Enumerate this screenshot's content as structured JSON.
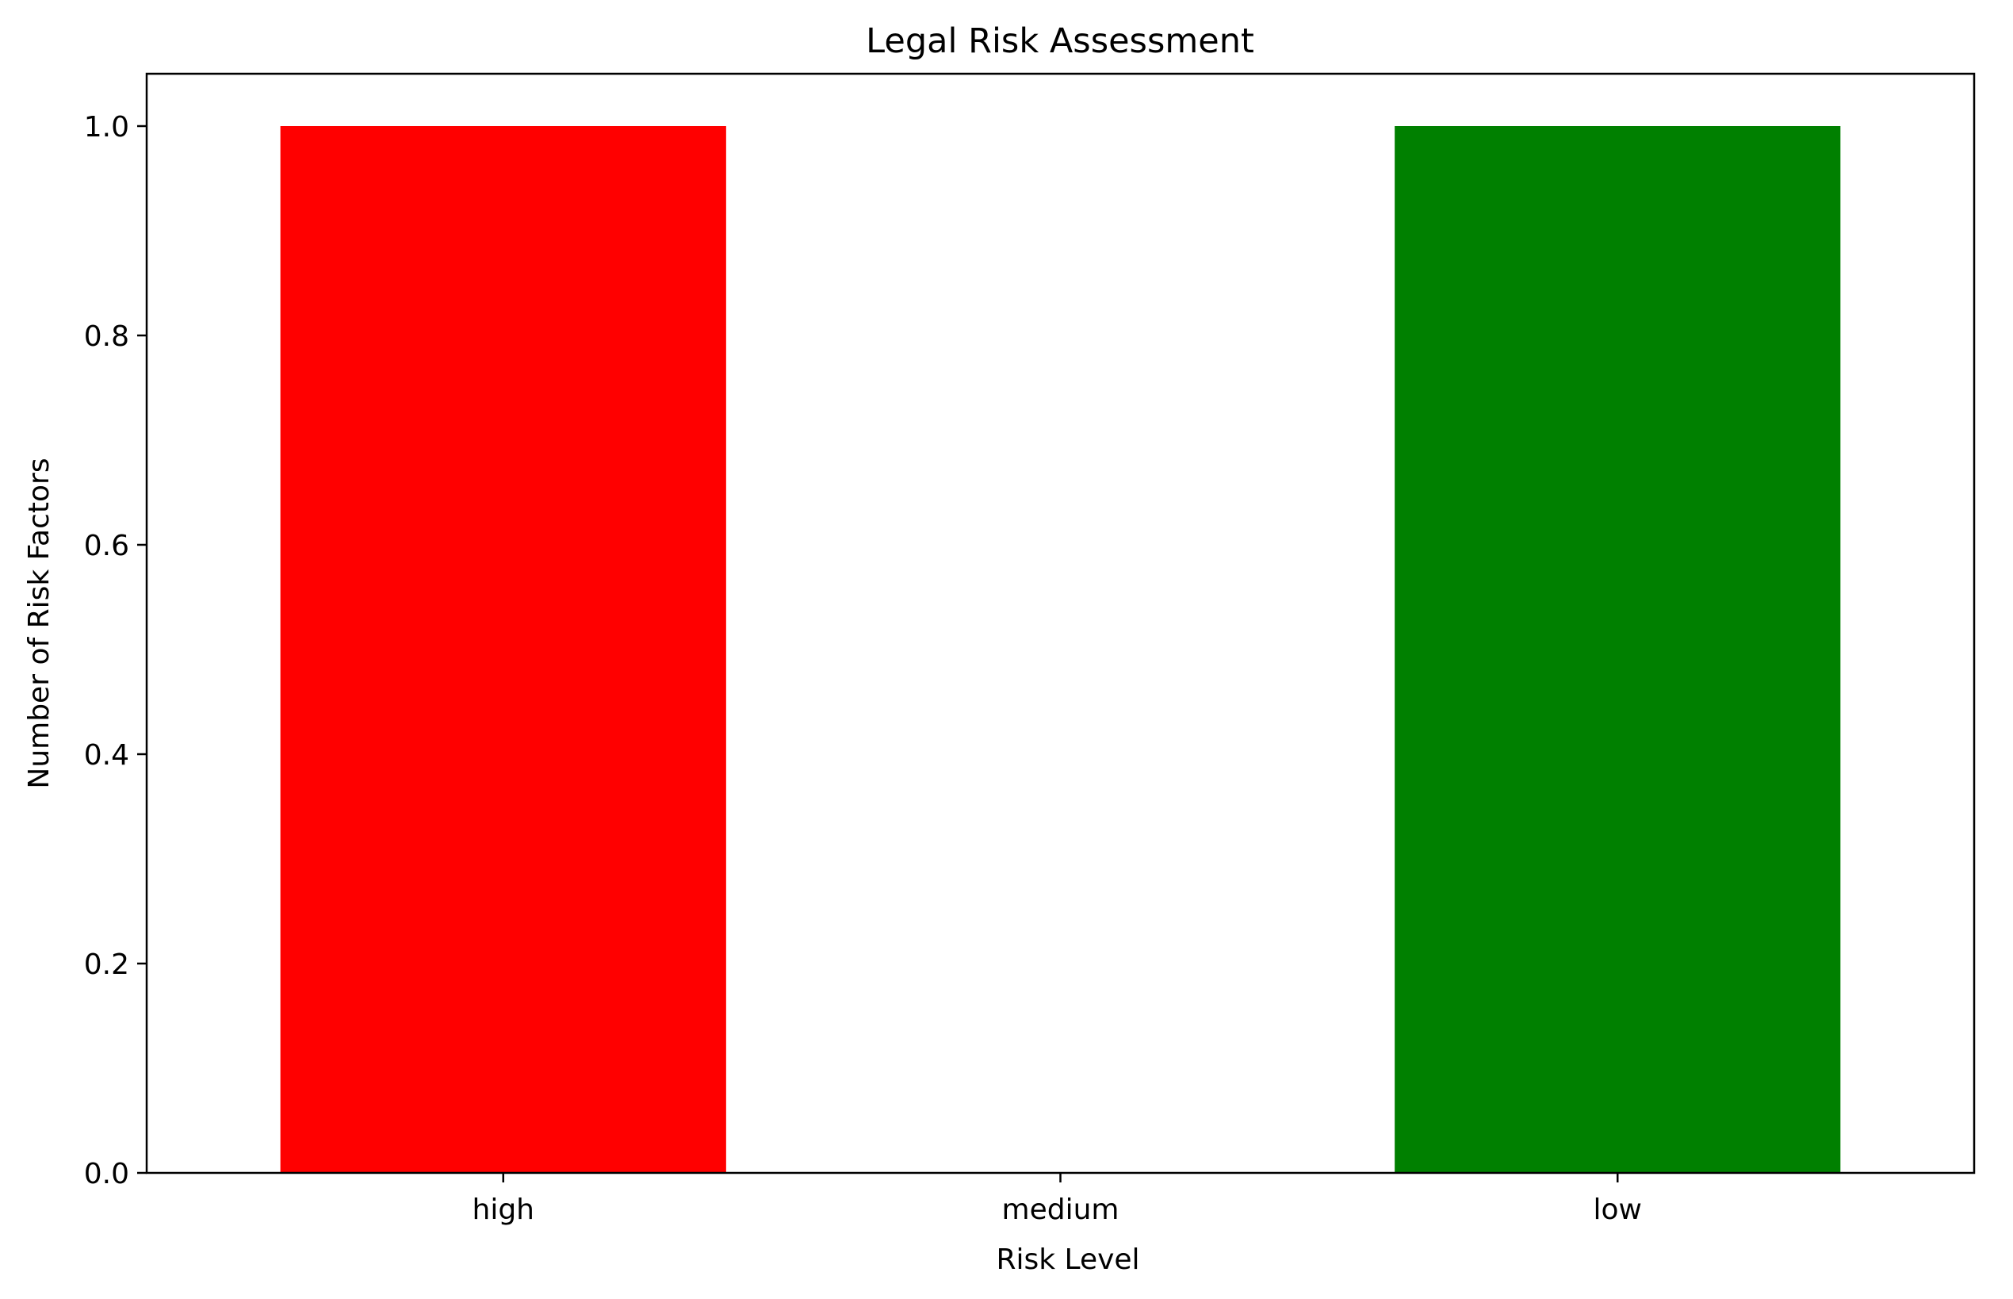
{
  "chart_data": {
    "type": "bar",
    "title": "Legal Risk Assessment",
    "xlabel": "Risk Level",
    "ylabel": "Number of Risk Factors",
    "categories": [
      "high",
      "medium",
      "low"
    ],
    "values": [
      1,
      0,
      1
    ],
    "colors": [
      "#ff0000",
      "#ffa500",
      "#008000"
    ],
    "ylim": [
      0,
      1.05
    ],
    "yticks": [
      0.0,
      0.2,
      0.4,
      0.6,
      0.8,
      1.0
    ],
    "ytick_labels": [
      "0.0",
      "0.2",
      "0.4",
      "0.6",
      "0.8",
      "1.0"
    ],
    "grid": false,
    "legend": "none"
  }
}
